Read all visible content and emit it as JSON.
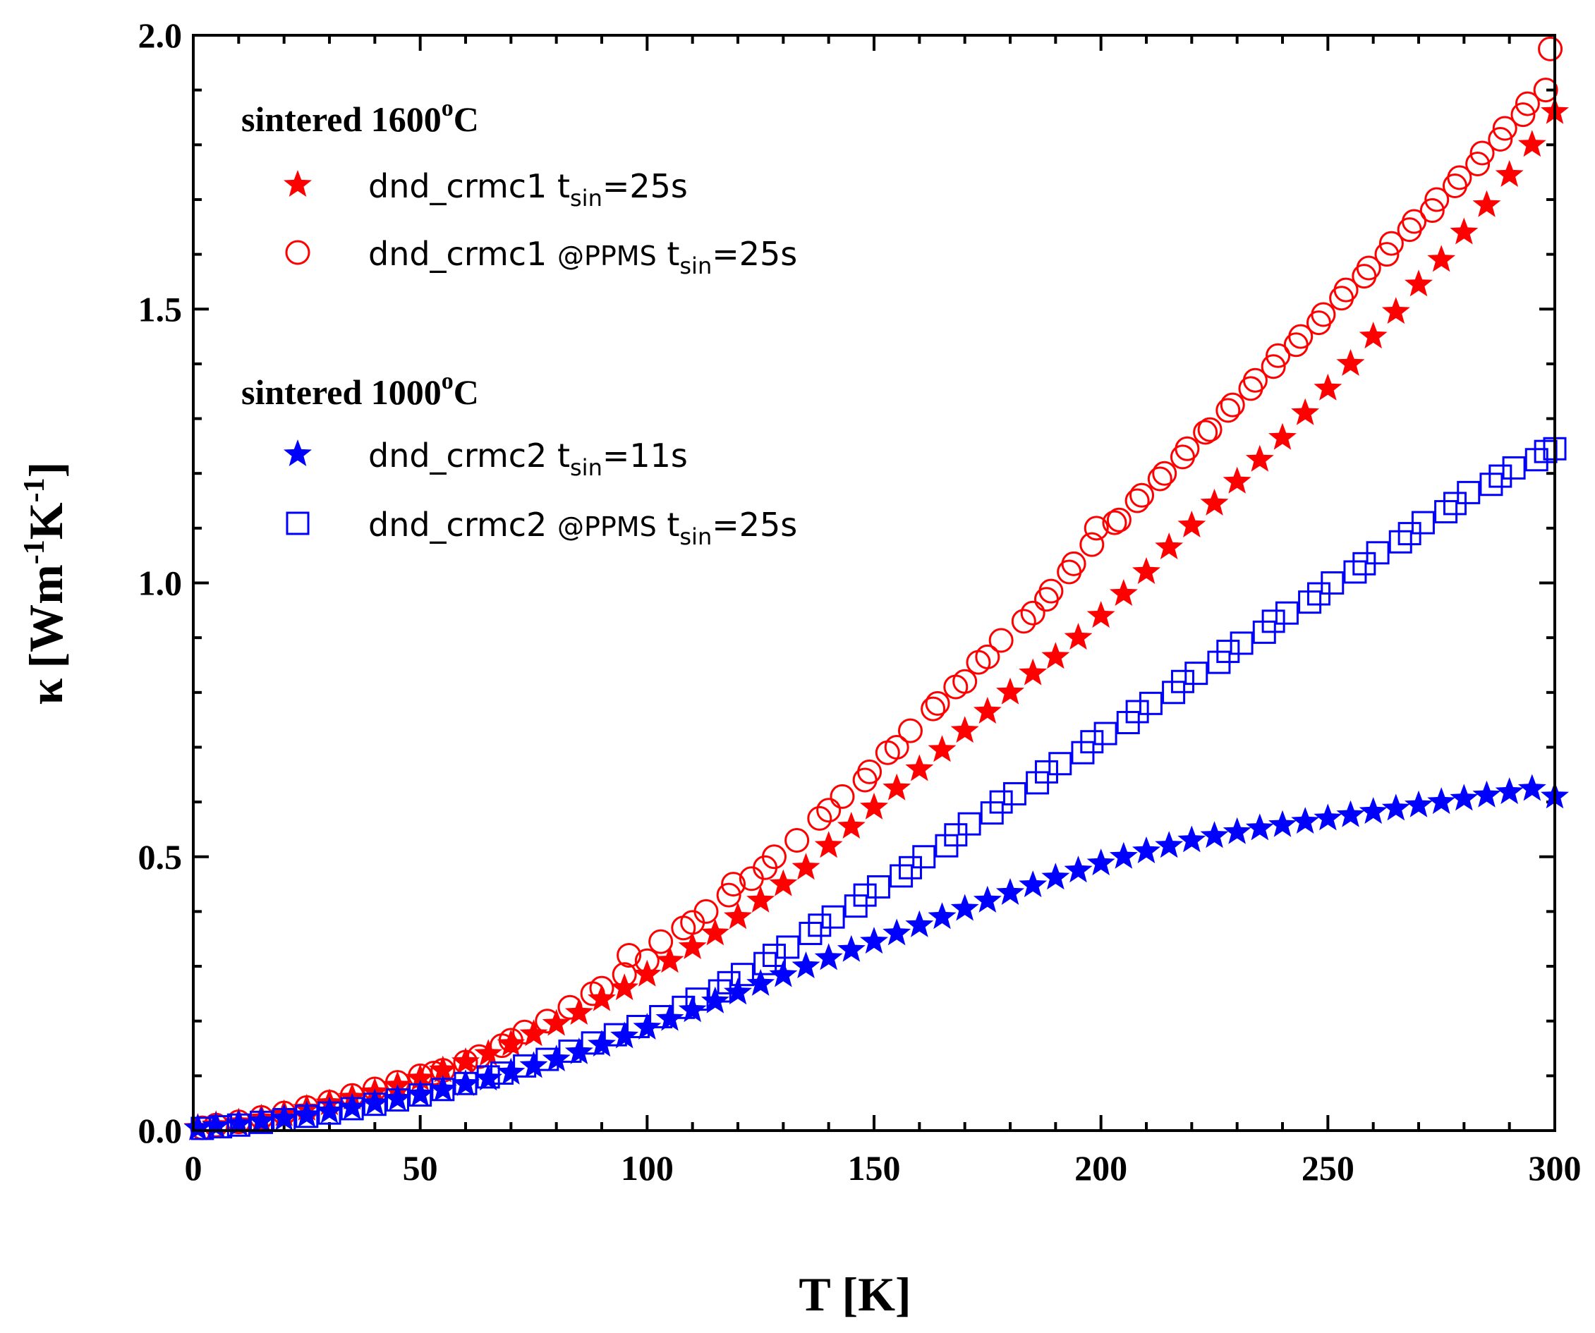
{
  "chart_data": {
    "type": "scatter",
    "title": "",
    "xlabel": "T [K]",
    "ylabel": "κ [Wm-1K-1]",
    "ylabel_parts": {
      "symbol": "κ",
      "open": "[Wm",
      "exp1": "-1",
      "mid": "K",
      "exp2": "-1",
      "close": "]"
    },
    "xlim": [
      0,
      300
    ],
    "ylim": [
      0,
      2.0
    ],
    "x_ticks": [
      "0",
      "50",
      "100",
      "150",
      "200",
      "250",
      "300"
    ],
    "y_ticks": [
      "0.0",
      "0.5",
      "1.0",
      "1.5",
      "2.0"
    ],
    "grid": false,
    "legend_position": "top-left",
    "legend_groups": [
      {
        "title": "sintered 1600",
        "degree": "o",
        "unit": "C",
        "entries": [
          0,
          1
        ]
      },
      {
        "title": "sintered 1000",
        "degree": "o",
        "unit": "C",
        "entries": [
          2,
          3
        ]
      }
    ],
    "series": [
      {
        "name": "dnd_crmc1 tsin=25s",
        "label": {
          "main": "dnd_crmc1",
          "at": "",
          "t": "t",
          "sub": "sin",
          "val": "=25s"
        },
        "marker": "star-filled",
        "color": "#ff0000",
        "x": [
          1,
          5,
          10,
          15,
          20,
          25,
          30,
          35,
          40,
          45,
          50,
          55,
          60,
          65,
          70,
          75,
          80,
          85,
          90,
          95,
          100,
          105,
          110,
          115,
          120,
          125,
          130,
          135,
          140,
          145,
          150,
          155,
          160,
          165,
          170,
          175,
          180,
          185,
          190,
          195,
          200,
          205,
          210,
          215,
          220,
          225,
          230,
          235,
          240,
          245,
          250,
          255,
          260,
          265,
          270,
          275,
          280,
          285,
          290,
          295,
          300
        ],
        "y": [
          0.005,
          0.01,
          0.015,
          0.022,
          0.03,
          0.04,
          0.05,
          0.06,
          0.07,
          0.082,
          0.095,
          0.11,
          0.125,
          0.14,
          0.158,
          0.176,
          0.195,
          0.215,
          0.24,
          0.26,
          0.285,
          0.31,
          0.335,
          0.36,
          0.39,
          0.42,
          0.45,
          0.48,
          0.52,
          0.555,
          0.59,
          0.625,
          0.66,
          0.695,
          0.73,
          0.765,
          0.8,
          0.835,
          0.865,
          0.9,
          0.94,
          0.98,
          1.02,
          1.065,
          1.105,
          1.145,
          1.185,
          1.225,
          1.265,
          1.31,
          1.355,
          1.4,
          1.45,
          1.495,
          1.545,
          1.59,
          1.64,
          1.69,
          1.745,
          1.8,
          1.86
        ]
      },
      {
        "name": "dnd_crmc1 @PPMS tsin=25s",
        "label": {
          "main": "dnd_crmc1",
          "at": "@PPMS",
          "t": "t",
          "sub": "sin",
          "val": "=25s"
        },
        "marker": "circle-open",
        "color": "#ff0000",
        "x": [
          2,
          5,
          10,
          15,
          20,
          25,
          30,
          35,
          40,
          45,
          50,
          53,
          55,
          60,
          63,
          68,
          70,
          73,
          78,
          83,
          88,
          90,
          95,
          96,
          100,
          103,
          108,
          110,
          113,
          118,
          119,
          123,
          126,
          128,
          133,
          138,
          140,
          143,
          148,
          149,
          153,
          155,
          158,
          163,
          164,
          168,
          170,
          173,
          175,
          178,
          183,
          185,
          188,
          189,
          193,
          194,
          198,
          199,
          203,
          204,
          208,
          209,
          213,
          214,
          218,
          219,
          223,
          224,
          228,
          229,
          233,
          234,
          238,
          239,
          243,
          244,
          248,
          249,
          253,
          254,
          258,
          259,
          263,
          264,
          268,
          269,
          273,
          274,
          278,
          279,
          283,
          284,
          288,
          289,
          293,
          294,
          298,
          299
        ],
        "y": [
          0.005,
          0.01,
          0.016,
          0.024,
          0.032,
          0.042,
          0.052,
          0.064,
          0.076,
          0.088,
          0.1,
          0.105,
          0.11,
          0.125,
          0.135,
          0.155,
          0.165,
          0.18,
          0.2,
          0.225,
          0.25,
          0.26,
          0.285,
          0.32,
          0.31,
          0.345,
          0.37,
          0.38,
          0.4,
          0.43,
          0.45,
          0.46,
          0.48,
          0.5,
          0.53,
          0.57,
          0.585,
          0.61,
          0.64,
          0.655,
          0.69,
          0.7,
          0.73,
          0.77,
          0.78,
          0.81,
          0.82,
          0.855,
          0.865,
          0.895,
          0.93,
          0.945,
          0.97,
          0.985,
          1.02,
          1.035,
          1.07,
          1.1,
          1.11,
          1.115,
          1.15,
          1.16,
          1.19,
          1.2,
          1.23,
          1.245,
          1.275,
          1.28,
          1.315,
          1.325,
          1.355,
          1.37,
          1.395,
          1.415,
          1.435,
          1.45,
          1.475,
          1.49,
          1.52,
          1.535,
          1.56,
          1.575,
          1.6,
          1.62,
          1.645,
          1.66,
          1.68,
          1.7,
          1.725,
          1.74,
          1.765,
          1.785,
          1.81,
          1.83,
          1.855,
          1.875,
          1.9,
          1.975
        ]
      },
      {
        "name": "dnd_crmc2 tsin=11s",
        "label": {
          "main": "dnd_crmc2",
          "at": "",
          "t": "t",
          "sub": "sin",
          "val": "=11s"
        },
        "marker": "star-filled",
        "color": "#0000ff",
        "x": [
          1,
          5,
          10,
          15,
          20,
          25,
          30,
          35,
          40,
          45,
          50,
          55,
          60,
          65,
          70,
          75,
          80,
          85,
          90,
          95,
          100,
          105,
          110,
          115,
          120,
          125,
          130,
          135,
          140,
          145,
          150,
          155,
          160,
          165,
          170,
          175,
          180,
          185,
          190,
          195,
          200,
          205,
          210,
          215,
          220,
          225,
          230,
          235,
          240,
          245,
          250,
          255,
          260,
          265,
          270,
          275,
          280,
          285,
          290,
          295,
          300
        ],
        "y": [
          0.004,
          0.008,
          0.012,
          0.017,
          0.022,
          0.028,
          0.035,
          0.042,
          0.05,
          0.058,
          0.066,
          0.075,
          0.085,
          0.095,
          0.106,
          0.118,
          0.13,
          0.143,
          0.157,
          0.172,
          0.188,
          0.204,
          0.22,
          0.236,
          0.252,
          0.268,
          0.284,
          0.3,
          0.315,
          0.33,
          0.345,
          0.36,
          0.375,
          0.39,
          0.405,
          0.42,
          0.434,
          0.448,
          0.462,
          0.475,
          0.488,
          0.5,
          0.51,
          0.52,
          0.53,
          0.538,
          0.545,
          0.552,
          0.558,
          0.564,
          0.57,
          0.576,
          0.582,
          0.588,
          0.594,
          0.6,
          0.606,
          0.612,
          0.618,
          0.624,
          0.61
        ]
      },
      {
        "name": "dnd_crmc2 @PPMS tsin=25s",
        "label": {
          "main": "dnd_crmc2",
          "at": "@PPMS",
          "t": "t",
          "sub": "sin",
          "val": "=25s"
        },
        "marker": "square-open",
        "color": "#0000ff",
        "x": [
          2,
          6,
          10,
          15,
          20,
          25,
          30,
          35,
          40,
          45,
          50,
          55,
          60,
          65,
          68,
          73,
          78,
          83,
          88,
          93,
          98,
          103,
          108,
          111,
          116,
          118,
          121,
          126,
          128,
          131,
          136,
          138,
          141,
          146,
          148,
          151,
          156,
          158,
          161,
          166,
          168,
          171,
          176,
          178,
          181,
          186,
          188,
          191,
          196,
          198,
          201,
          206,
          208,
          211,
          216,
          218,
          221,
          226,
          228,
          231,
          236,
          238,
          241,
          246,
          248,
          251,
          256,
          258,
          261,
          266,
          268,
          271,
          276,
          278,
          281,
          286,
          288,
          291,
          296,
          298,
          300
        ],
        "y": [
          0.004,
          0.007,
          0.01,
          0.015,
          0.02,
          0.026,
          0.032,
          0.04,
          0.048,
          0.056,
          0.065,
          0.075,
          0.086,
          0.098,
          0.105,
          0.118,
          0.13,
          0.145,
          0.16,
          0.175,
          0.19,
          0.208,
          0.225,
          0.24,
          0.255,
          0.27,
          0.285,
          0.305,
          0.32,
          0.335,
          0.36,
          0.375,
          0.39,
          0.41,
          0.43,
          0.445,
          0.465,
          0.48,
          0.5,
          0.52,
          0.54,
          0.56,
          0.58,
          0.6,
          0.615,
          0.635,
          0.655,
          0.67,
          0.69,
          0.71,
          0.725,
          0.745,
          0.765,
          0.78,
          0.8,
          0.82,
          0.835,
          0.855,
          0.875,
          0.89,
          0.91,
          0.93,
          0.945,
          0.965,
          0.98,
          1.0,
          1.02,
          1.035,
          1.055,
          1.075,
          1.09,
          1.11,
          1.13,
          1.145,
          1.165,
          1.18,
          1.195,
          1.21,
          1.225,
          1.24,
          1.245
        ]
      }
    ]
  }
}
